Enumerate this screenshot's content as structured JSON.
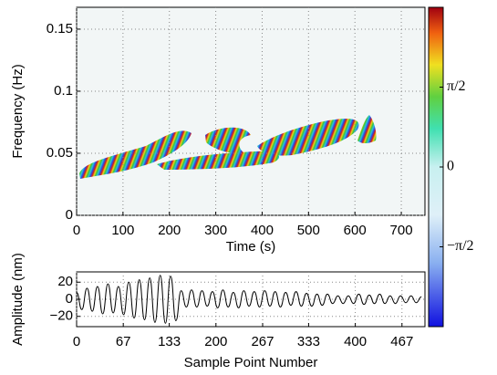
{
  "chart_data": [
    {
      "type": "heatmap",
      "xlabel": "Time (s)",
      "ylabel": "Frequency (Hz)",
      "xlim": [
        0,
        751
      ],
      "ylim": [
        0,
        0.1676
      ],
      "xticks": [
        0,
        100,
        200,
        300,
        400,
        500,
        600,
        700
      ],
      "yticks": [
        0,
        0.05,
        0.1,
        0.15
      ],
      "grid": true,
      "colormap": "jet",
      "clim": [
        -3.1416,
        3.1416
      ],
      "cticks": [
        {
          "value": -1.5708,
          "label": "−π/2"
        },
        0,
        {
          "value": 1.5708,
          "label": "π/2"
        }
      ]
    },
    {
      "type": "line",
      "xlabel": "Sample Point Number",
      "ylabel": "Amplitude (nm)",
      "xlim": [
        0,
        500
      ],
      "ylim": [
        -32,
        32
      ],
      "xticks": [
        0,
        67,
        133,
        200,
        267,
        333,
        400,
        467
      ],
      "yticks": [
        {
          "value": -20,
          "label": "−20"
        },
        0,
        20
      ],
      "grid": true,
      "color": "#000000",
      "x": [
        0,
        7.5,
        15,
        22.5,
        30,
        37.5,
        45,
        52.5,
        60,
        67.5,
        75,
        82.5,
        90,
        97.5,
        105,
        112.5,
        120,
        127.5,
        135,
        142.5,
        150,
        157.5,
        165,
        172.5,
        180,
        187.5,
        195,
        202.5,
        210,
        217.5,
        225,
        232.5,
        240,
        247.5,
        255,
        262.5,
        270,
        277.5,
        285,
        292.5,
        300,
        307.5,
        315,
        322.5,
        330,
        337.5,
        345,
        352.5,
        360,
        367.5,
        375,
        382.5,
        390,
        397.5,
        405,
        412.5,
        420,
        427.5,
        435,
        442.5,
        450,
        457.5,
        465,
        472.5,
        480,
        487.5,
        495
      ],
      "values": [
        8,
        -12,
        13,
        -14,
        15,
        -17,
        18,
        -16,
        15,
        -18,
        20,
        -22,
        23,
        -24,
        25,
        -27,
        28,
        -28,
        27,
        -25,
        10,
        -9,
        11,
        -9,
        10,
        -8,
        9,
        -10,
        11,
        -9,
        8,
        -10,
        10,
        -8,
        9,
        -9,
        10,
        -8,
        9,
        -9,
        8,
        -7,
        9,
        -8,
        7,
        -8,
        6,
        -7,
        6,
        -5,
        4,
        -5,
        4,
        -5,
        6,
        -6,
        5,
        -5,
        6,
        -5,
        4,
        -5,
        4,
        -4,
        4,
        -4,
        3
      ]
    }
  ]
}
